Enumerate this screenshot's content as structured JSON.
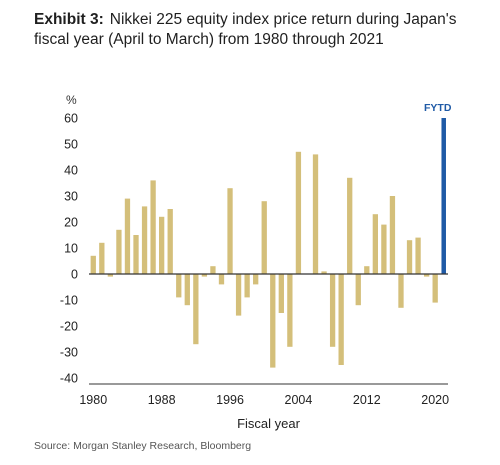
{
  "title": {
    "prefix": "Exhibit 3:",
    "text": "Nikkei 225 equity index price return during Japan's fiscal year (April to March) from 1980 through 2021"
  },
  "source": "Source: Morgan Stanley Research, Bloomberg",
  "colors": {
    "bar": "#d4bf7a",
    "highlight": "#1f5aa6",
    "axis": "#333333"
  },
  "chart_data": {
    "type": "bar",
    "title": "Nikkei 225 equity index price return during Japan's fiscal year (April to March) from 1980 through 2021",
    "xlabel": "Fiscal year",
    "ylabel": "%",
    "ylim": [
      -40,
      60
    ],
    "yticks": [
      -40,
      -30,
      -20,
      -10,
      0,
      10,
      20,
      30,
      40,
      50,
      60
    ],
    "xticks": [
      1980,
      1988,
      1996,
      2004,
      2012,
      2020
    ],
    "categories": [
      1980,
      1981,
      1982,
      1983,
      1984,
      1985,
      1986,
      1987,
      1988,
      1989,
      1990,
      1991,
      1992,
      1993,
      1994,
      1995,
      1996,
      1997,
      1998,
      1999,
      2000,
      2001,
      2002,
      2003,
      2004,
      2005,
      2006,
      2007,
      2008,
      2009,
      2010,
      2011,
      2012,
      2013,
      2014,
      2015,
      2016,
      2017,
      2018,
      2019,
      2020,
      2021
    ],
    "values": [
      7,
      12,
      -1,
      17,
      29,
      15,
      26,
      36,
      22,
      25,
      -9,
      -12,
      -27,
      -1,
      3,
      -4,
      33,
      -16,
      -9,
      -4,
      28,
      -36,
      -15,
      -28,
      47,
      0,
      46,
      1,
      -28,
      -35,
      37,
      -12,
      3,
      23,
      19,
      30,
      -13,
      13,
      14,
      -1,
      -11,
      60
    ],
    "highlight": {
      "category": 2021,
      "label": "FYTD"
    },
    "grid": false,
    "legend": "none"
  }
}
